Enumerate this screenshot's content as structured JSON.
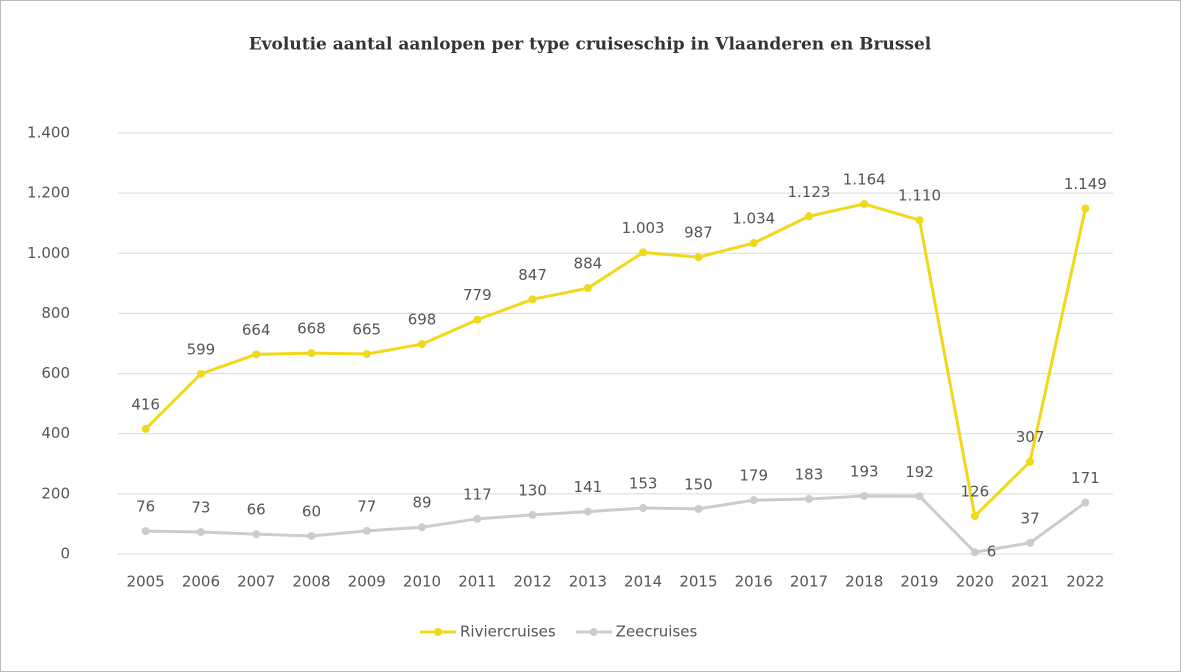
{
  "chart_data": {
    "type": "line",
    "title": "Evolutie aantal aanlopen per type cruiseschip in Vlaanderen en Brussel",
    "categories": [
      "2005",
      "2006",
      "2007",
      "2008",
      "2009",
      "2010",
      "2011",
      "2012",
      "2013",
      "2014",
      "2015",
      "2016",
      "2017",
      "2018",
      "2019",
      "2020",
      "2021",
      "2022"
    ],
    "series": [
      {
        "name": "Riviercruises",
        "color": "#f0d81a",
        "values": [
          416,
          599,
          664,
          668,
          665,
          698,
          779,
          847,
          884,
          1003,
          987,
          1034,
          1123,
          1164,
          1110,
          126,
          307,
          1149
        ],
        "value_labels": [
          "416",
          "599",
          "664",
          "668",
          "665",
          "698",
          "779",
          "847",
          "884",
          "1.003",
          "987",
          "1.034",
          "1.123",
          "1.164",
          "1.110",
          "126",
          "307",
          "1.149"
        ]
      },
      {
        "name": "Zeecruises",
        "color": "#cccccc",
        "values": [
          76,
          73,
          66,
          60,
          77,
          89,
          117,
          130,
          141,
          153,
          150,
          179,
          183,
          193,
          192,
          6,
          37,
          171
        ]
      }
    ],
    "ylim": [
      0,
      1400
    ],
    "yticks": [
      0,
      200,
      400,
      600,
      800,
      {
        "value": 1000,
        "label": "1.000"
      },
      {
        "value": 1200,
        "label": "1.200"
      },
      {
        "value": 1400,
        "label": "1.400"
      }
    ],
    "grid": true,
    "legend": "bottom"
  }
}
